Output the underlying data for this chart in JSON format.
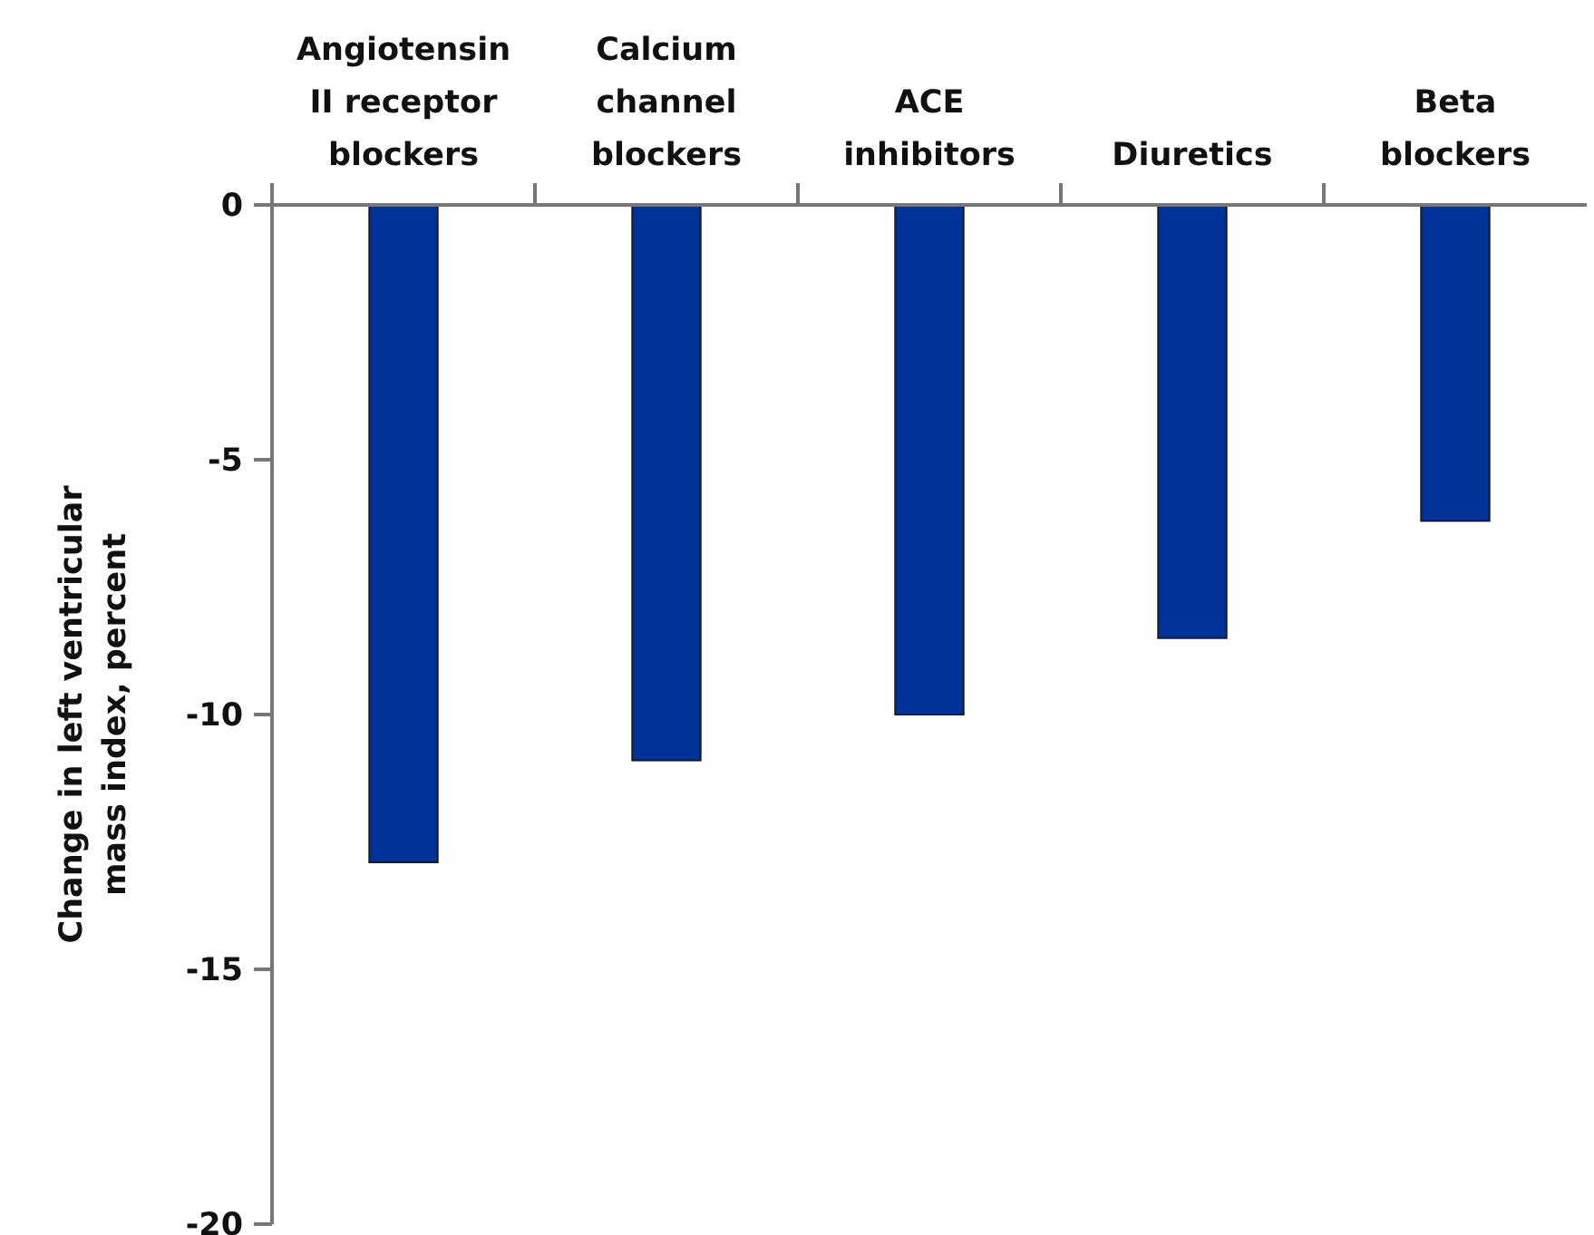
{
  "chart_data": {
    "type": "bar",
    "ylabel": "Change in left ventricular mass index, percent",
    "categories": [
      "Angiotensin II receptor blockers",
      "Calcium channel blockers",
      "ACE inhibitors",
      "Diuretics",
      "Beta blockers"
    ],
    "values": [
      -12.9,
      -10.9,
      -10,
      -8.5,
      -6.2
    ],
    "color": "#003399",
    "ylim": [
      -20,
      0
    ],
    "yticks": [
      -20,
      -15,
      -10,
      -5,
      0
    ],
    "grid": false
  }
}
